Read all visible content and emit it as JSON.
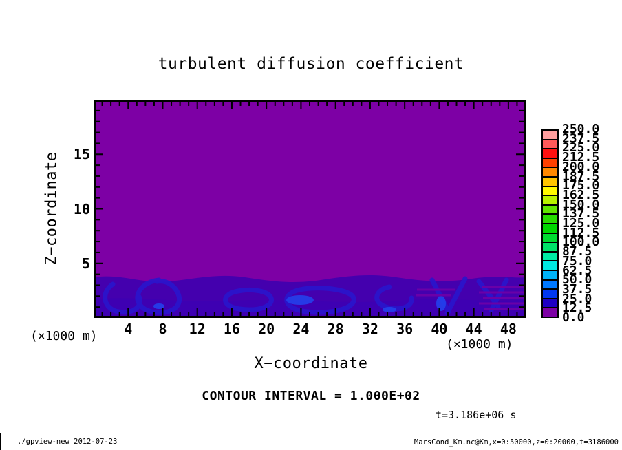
{
  "title": "turbulent diffusion coefficient",
  "axes": {
    "x": {
      "label": "X−coordinate",
      "unit": "(×1000 m)",
      "range": [
        0,
        50
      ],
      "major_ticks": [
        4,
        8,
        12,
        16,
        20,
        24,
        28,
        32,
        36,
        40,
        44,
        48
      ],
      "minor_step": 1
    },
    "y": {
      "label": "Z−coordinate",
      "unit": "(×1000 m)",
      "range": [
        0,
        20
      ],
      "major_ticks": [
        5,
        10,
        15
      ],
      "minor_step": 1
    }
  },
  "colorbar": {
    "tick_labels": [
      "250.0",
      "237.5",
      "225.0",
      "212.5",
      "200.0",
      "187.5",
      "175.0",
      "162.5",
      "150.0",
      "137.5",
      "125.0",
      "112.5",
      "100.0",
      "87.5",
      "75.0",
      "62.5",
      "50.0",
      "37.5",
      "25.0",
      "12.5",
      "0.0"
    ],
    "colors_top_to_bottom": [
      "#ff9e9e",
      "#ff5a5a",
      "#ff1010",
      "#ff4000",
      "#ff8800",
      "#ffc400",
      "#fff800",
      "#b8f000",
      "#60e400",
      "#28dc00",
      "#00d800",
      "#00dc30",
      "#00e468",
      "#00eca4",
      "#00e8e0",
      "#00b4f8",
      "#0078ff",
      "#0038f0",
      "#1e00c4",
      "#7d00a5"
    ]
  },
  "annotations": {
    "contour_interval": "CONTOUR INTERVAL = 1.000E+02",
    "time": "t=3.186e+06 s"
  },
  "statusbar": {
    "left": "./gpview-new  2012-07-23",
    "right": "MarsCond_Km.nc@Km,x=0:50000,z=0:20000,t=3186000"
  },
  "field_colors": {
    "background": "#7d00a5",
    "band_base": "#4400ae",
    "band_deep": "#3a00b4",
    "eddy_dark": "#2a15cc",
    "eddy_mid": "#3522d2",
    "eddy_bright": "#2244ee",
    "gap_purple": "#6a00a8",
    "frame": "#000000"
  },
  "chart_data": {
    "type": "heatmap",
    "title": "turbulent diffusion coefficient",
    "xlabel": "X-coordinate (×1000 m)",
    "ylabel": "Z-coordinate (×1000 m)",
    "xlim": [
      0,
      50
    ],
    "ylim": [
      0,
      20
    ],
    "contour_levels": [
      0,
      12.5,
      25,
      37.5,
      50,
      62.5,
      75,
      87.5,
      100,
      112.5,
      125,
      137.5,
      150,
      162.5,
      175,
      187.5,
      200,
      212.5,
      225,
      237.5,
      250
    ],
    "contour_interval": 100,
    "time_seconds": 3186000,
    "legend_position": "right",
    "grid": false,
    "description": "Filled-contour field of turbulent diffusion coefficient: ≈0–12.5 (purple) over most of the domain; convective boundary-layer eddies below z≈3.5 (×1000 m) with values ≈12.5–50 (indigo/blue swirls).",
    "x_sample": [
      2.5,
      7.5,
      12.5,
      17.5,
      22.5,
      27.5,
      32.5,
      37.5,
      42.5,
      47.5
    ],
    "z_sample": [
      0.5,
      1.5,
      2.5,
      3.5,
      10,
      18
    ],
    "values_by_z": {
      "18": [
        5,
        5,
        5,
        5,
        5,
        5,
        5,
        5,
        5,
        5
      ],
      "10": [
        5,
        5,
        5,
        5,
        5,
        5,
        5,
        5,
        5,
        5
      ],
      "3.5": [
        10,
        8,
        12,
        9,
        11,
        10,
        12,
        9,
        11,
        10
      ],
      "2.5": [
        22,
        28,
        20,
        30,
        26,
        24,
        30,
        22,
        28,
        25
      ],
      "1.5": [
        30,
        24,
        33,
        27,
        35,
        30,
        26,
        34,
        29,
        31
      ],
      "0.5": [
        24,
        31,
        26,
        33,
        28,
        31,
        25,
        34,
        27,
        26
      ]
    }
  }
}
